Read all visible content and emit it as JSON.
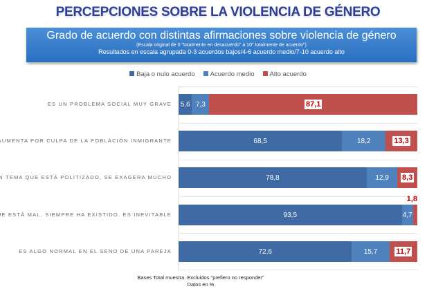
{
  "header": {
    "title": "PERCEPCIONES SOBRE LA VIOLENCIA DE GÉNERO",
    "box_title": "Grado de acuerdo con distintas afirmaciones sobre violencia de género",
    "box_sub1": "(Escala original de 0 \"totalmente en desacuerdo\" a 10\" totalmente de acuerdo\")",
    "box_sub2": "Resultados en escala agrupada 0-3 acuerdos bajos/4-6 acuerdo medio/7-10 acuerdo alto"
  },
  "footer": {
    "line1": "Bases Total muestra. Excluidos \"prefiero no responder\"",
    "line2": "Datos en %"
  },
  "chart_data": {
    "type": "bar",
    "orientation": "horizontal",
    "stacked": "100%",
    "categories": [
      "ES UN PROBLEMA SOCIAL MUY GRAVE",
      "AUMENTA POR CULPA DE LA POBLACIÓN INMIGRANTE",
      "ES UN TEMA QUE ESTÁ POLITIZADO, SE EXAGERA MUCHO",
      "AUNQUE ESTÁ MAL, SIEMPRE HA EXISTIDO. ES INEVITABLE",
      "ES ALGO NORMAL EN EL SENO DE UNA PAREJA"
    ],
    "series": [
      {
        "name": "Baja o nulo acuerdo",
        "color": "#3f6aa3",
        "values": [
          5.6,
          68.5,
          78.8,
          93.5,
          72.6
        ],
        "labels": [
          "5,6",
          "68,5",
          "78,8",
          "93,5",
          "72,6"
        ]
      },
      {
        "name": "Acuerdo medio",
        "color": "#4f81bd",
        "values": [
          7.3,
          18.2,
          12.9,
          4.7,
          15.7
        ],
        "labels": [
          "7,3",
          "18,2",
          "12,9",
          "4,7",
          "15,7"
        ]
      },
      {
        "name": "Alto acuerdo",
        "color": "#c0504d",
        "values": [
          87.1,
          13.3,
          8.3,
          1.8,
          11.7
        ],
        "labels": [
          "87,1",
          "13,3",
          "8,3",
          "1,8",
          "11,7"
        ]
      }
    ],
    "legend": "top",
    "xlim": [
      0,
      100
    ]
  }
}
